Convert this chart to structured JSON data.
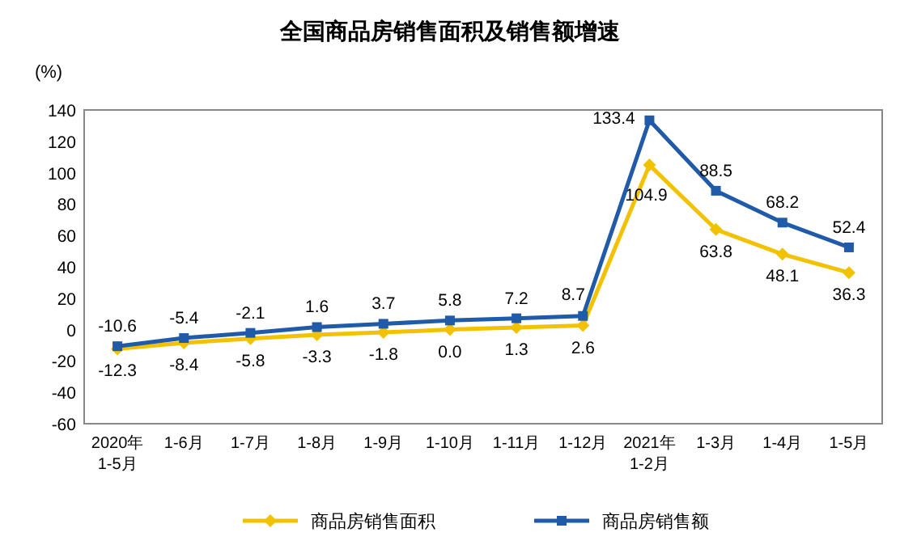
{
  "chart_data": {
    "type": "line",
    "title": "全国商品房销售面积及销售额增速",
    "ylabel": "(%)",
    "categories": [
      "2020年\n1-5月",
      "1-6月",
      "1-7月",
      "1-8月",
      "1-9月",
      "1-10月",
      "1-11月",
      "1-12月",
      "2021年\n1-2月",
      "1-3月",
      "1-4月",
      "1-5月"
    ],
    "series": [
      {
        "name": "商品房销售面积",
        "color": "#f2c200",
        "marker": "diamond",
        "values": [
          -12.3,
          -8.4,
          -5.8,
          -3.3,
          -1.8,
          0.0,
          1.3,
          2.6,
          104.9,
          63.8,
          48.1,
          36.3
        ],
        "value_labels": [
          "-12.3",
          "-8.4",
          "-5.8",
          "-3.3",
          "-1.8",
          "0.0",
          "1.3",
          "2.6",
          "104.9",
          "63.8",
          "48.1",
          "36.3"
        ]
      },
      {
        "name": "商品房销售额",
        "color": "#1f5ba8",
        "marker": "square",
        "values": [
          -10.6,
          -5.4,
          -2.1,
          1.6,
          3.7,
          5.8,
          7.2,
          8.7,
          133.4,
          88.5,
          68.2,
          52.4
        ],
        "value_labels": [
          "-10.6",
          "-5.4",
          "-2.1",
          "1.6",
          "3.7",
          "5.8",
          "7.2",
          "8.7",
          "133.4",
          "88.5",
          "68.2",
          "52.4"
        ]
      }
    ],
    "ylim": [
      -60,
      140
    ],
    "yticks": [
      -60,
      -40,
      -20,
      0,
      20,
      40,
      60,
      80,
      100,
      120,
      140
    ],
    "legend": "bottom",
    "grid": false
  }
}
